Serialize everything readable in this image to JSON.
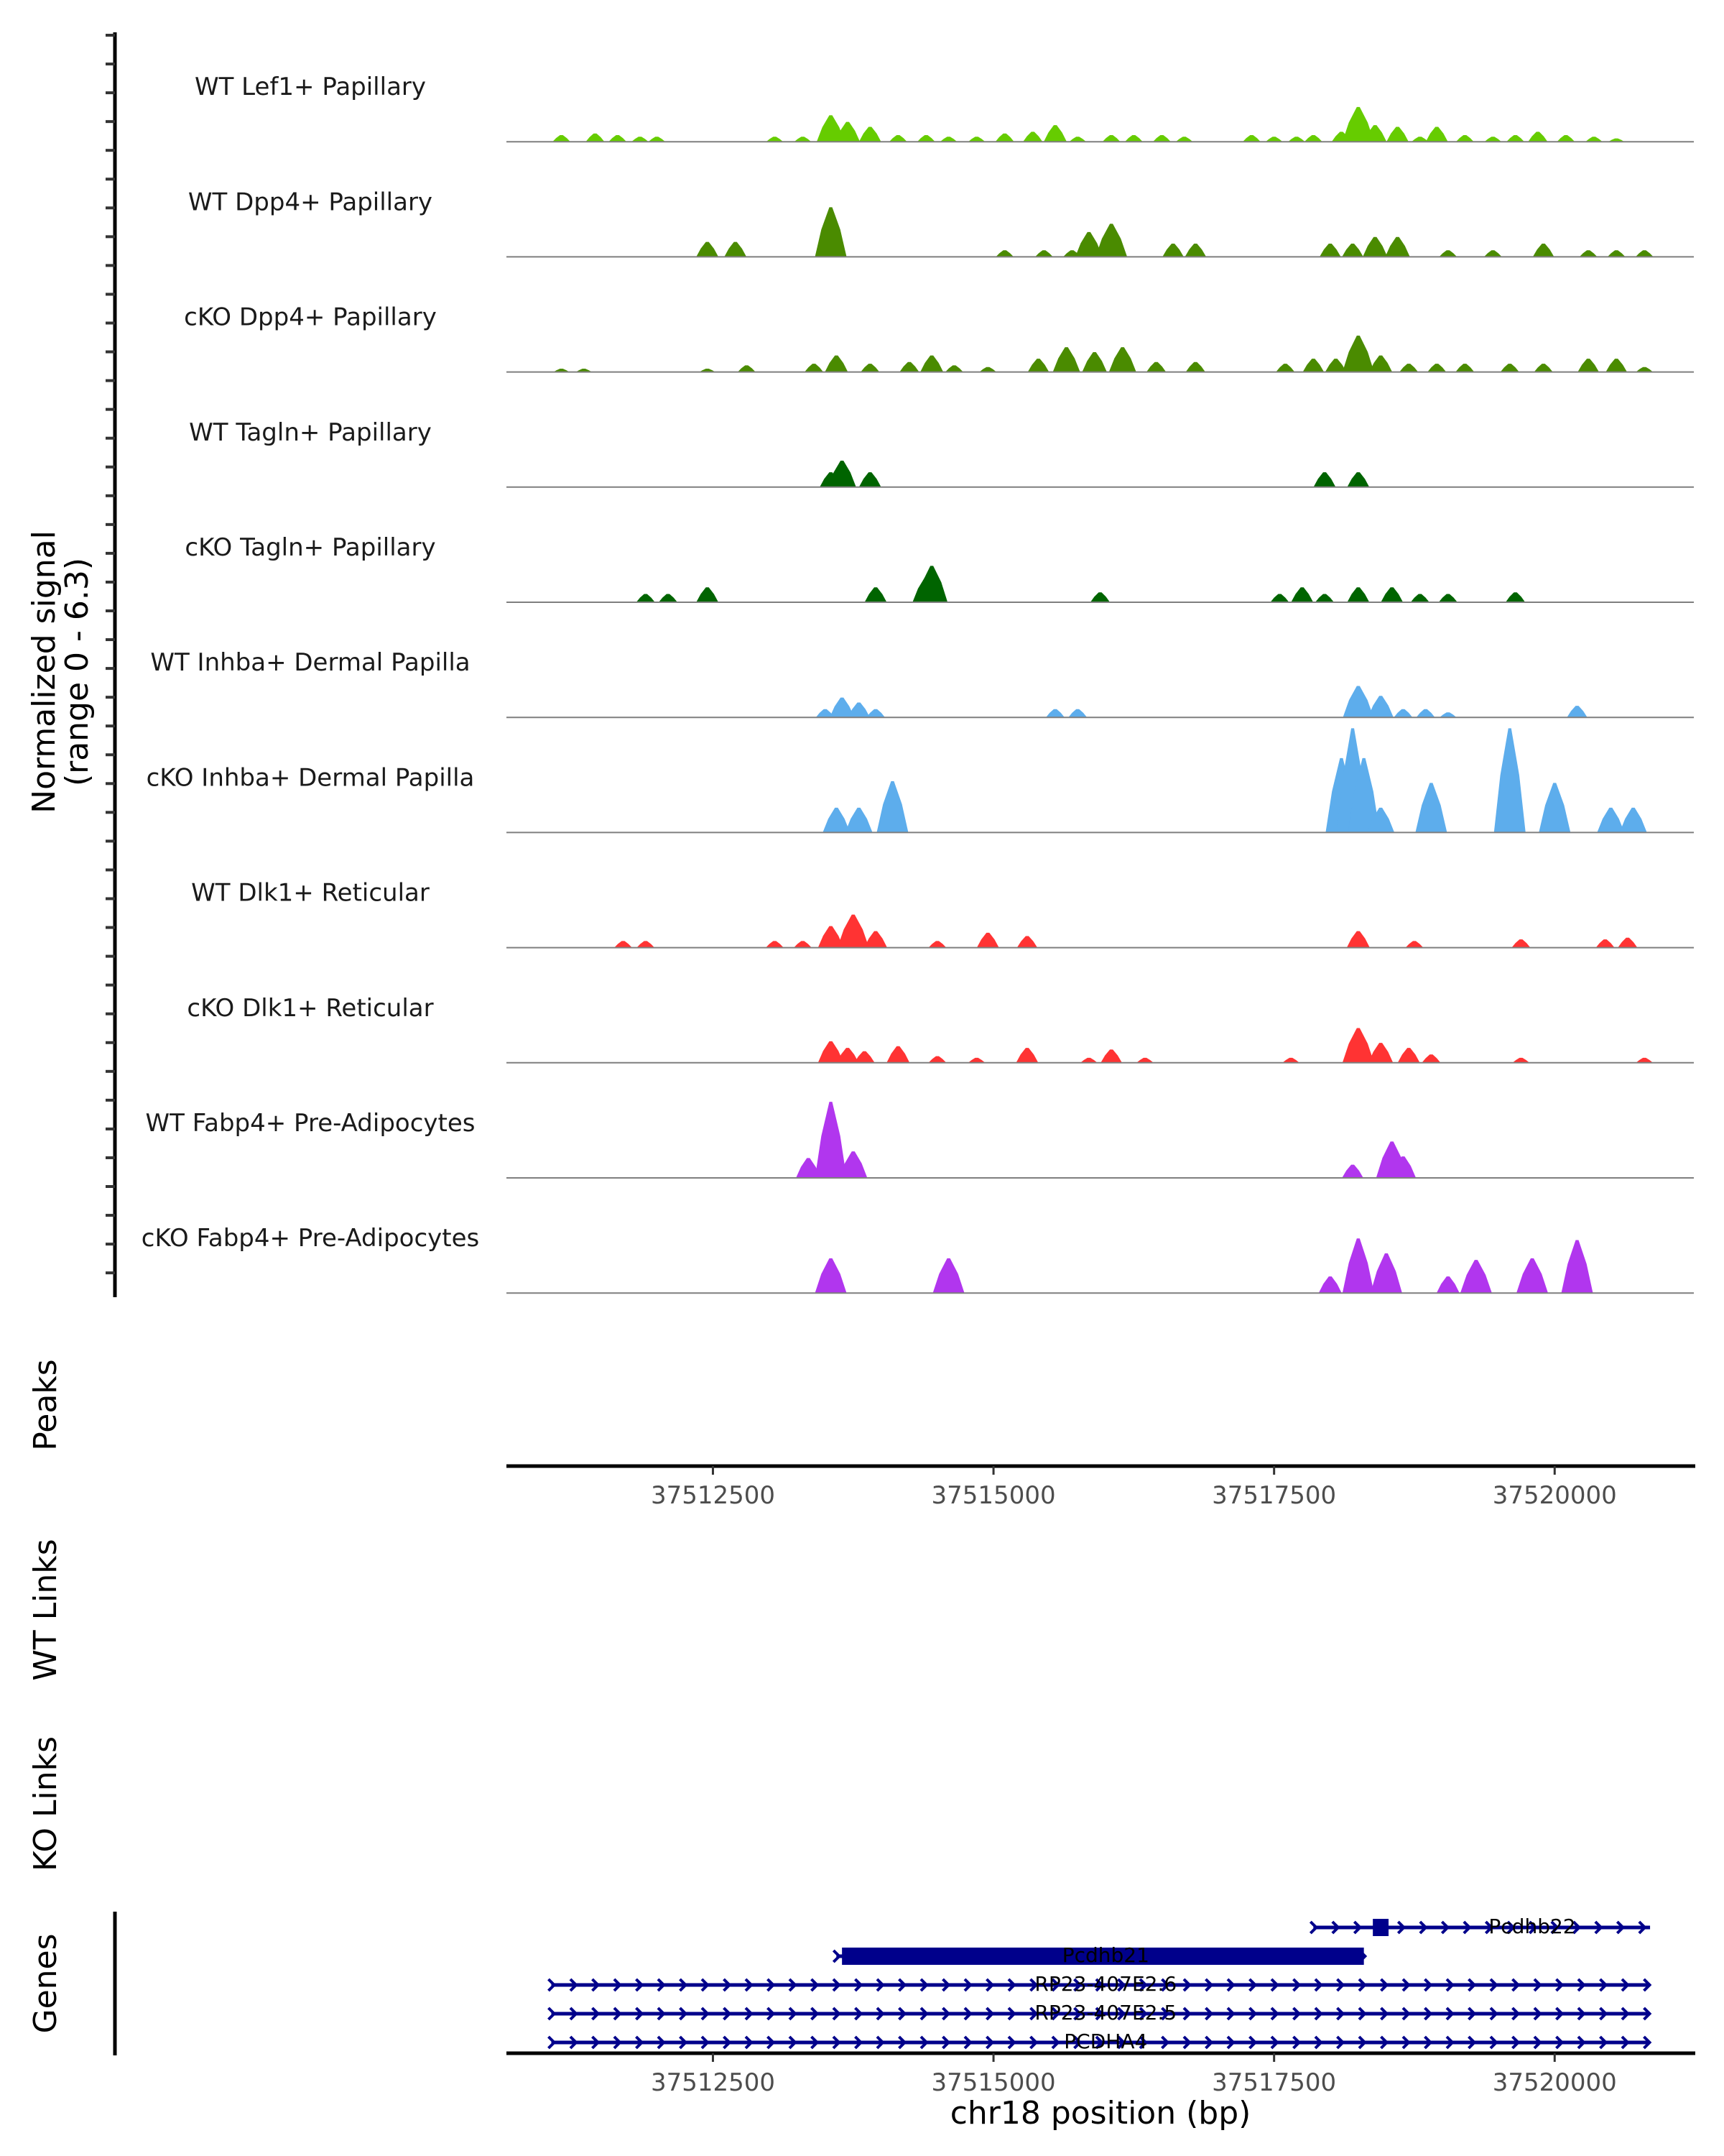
{
  "chart_data": {
    "type": "area",
    "title": "",
    "chromosome": "chr18",
    "xlabel": "chr18 position (bp)",
    "ylabel": "Normalized signal",
    "ylabel_sub": "(range 0 - 6.3)",
    "ylim": [
      0,
      6.3
    ],
    "xlim": [
      37510660,
      37521240
    ],
    "x_ticks": [
      37512500,
      37515000,
      37517500,
      37520000
    ],
    "x_tick_labels": [
      "37512500",
      "37515000",
      "37517500",
      "37520000"
    ],
    "grid": false,
    "tracks": [
      {
        "name": "WT Lef1+ Papillary",
        "color": "#66CC00",
        "peaks": [
          [
            37511150,
            0.4
          ],
          [
            37511450,
            0.5
          ],
          [
            37511650,
            0.4
          ],
          [
            37511850,
            0.3
          ],
          [
            37512000,
            0.3
          ],
          [
            37513050,
            0.3
          ],
          [
            37513300,
            0.3
          ],
          [
            37513550,
            1.6
          ],
          [
            37513700,
            1.2
          ],
          [
            37513900,
            0.9
          ],
          [
            37514150,
            0.4
          ],
          [
            37514400,
            0.4
          ],
          [
            37514600,
            0.3
          ],
          [
            37514850,
            0.3
          ],
          [
            37515100,
            0.5
          ],
          [
            37515350,
            0.6
          ],
          [
            37515550,
            1.0
          ],
          [
            37515750,
            0.3
          ],
          [
            37516050,
            0.4
          ],
          [
            37516250,
            0.4
          ],
          [
            37516500,
            0.4
          ],
          [
            37516700,
            0.3
          ],
          [
            37517300,
            0.4
          ],
          [
            37517500,
            0.3
          ],
          [
            37517700,
            0.3
          ],
          [
            37517850,
            0.4
          ],
          [
            37518100,
            0.6
          ],
          [
            37518250,
            2.1
          ],
          [
            37518400,
            1.0
          ],
          [
            37518600,
            0.9
          ],
          [
            37518800,
            0.3
          ],
          [
            37518950,
            0.9
          ],
          [
            37519200,
            0.4
          ],
          [
            37519450,
            0.3
          ],
          [
            37519650,
            0.4
          ],
          [
            37519850,
            0.6
          ],
          [
            37520100,
            0.4
          ],
          [
            37520350,
            0.3
          ],
          [
            37520550,
            0.2
          ]
        ]
      },
      {
        "name": "WT Dpp4+ Papillary",
        "color": "#4A8B00",
        "peaks": [
          [
            37512450,
            0.9
          ],
          [
            37512700,
            0.9
          ],
          [
            37513550,
            3.0
          ],
          [
            37515100,
            0.4
          ],
          [
            37515450,
            0.4
          ],
          [
            37515700,
            0.4
          ],
          [
            37515850,
            1.5
          ],
          [
            37516050,
            2.0
          ],
          [
            37516600,
            0.8
          ],
          [
            37516800,
            0.8
          ],
          [
            37518000,
            0.8
          ],
          [
            37518200,
            0.8
          ],
          [
            37518400,
            1.2
          ],
          [
            37518600,
            1.2
          ],
          [
            37519050,
            0.4
          ],
          [
            37519450,
            0.4
          ],
          [
            37519900,
            0.8
          ],
          [
            37520300,
            0.4
          ],
          [
            37520550,
            0.4
          ],
          [
            37520800,
            0.4
          ]
        ]
      },
      {
        "name": "cKO Dpp4+ Papillary",
        "color": "#4A8B00",
        "peaks": [
          [
            37511150,
            0.2
          ],
          [
            37511350,
            0.2
          ],
          [
            37512450,
            0.2
          ],
          [
            37512800,
            0.4
          ],
          [
            37513400,
            0.5
          ],
          [
            37513600,
            1.0
          ],
          [
            37513900,
            0.5
          ],
          [
            37514250,
            0.6
          ],
          [
            37514450,
            1.0
          ],
          [
            37514650,
            0.4
          ],
          [
            37514950,
            0.3
          ],
          [
            37515400,
            0.8
          ],
          [
            37515650,
            1.5
          ],
          [
            37515900,
            1.2
          ],
          [
            37516150,
            1.5
          ],
          [
            37516450,
            0.6
          ],
          [
            37516800,
            0.6
          ],
          [
            37517600,
            0.5
          ],
          [
            37517850,
            0.8
          ],
          [
            37518050,
            0.8
          ],
          [
            37518250,
            2.2
          ],
          [
            37518450,
            1.0
          ],
          [
            37518700,
            0.5
          ],
          [
            37518950,
            0.5
          ],
          [
            37519200,
            0.5
          ],
          [
            37519600,
            0.5
          ],
          [
            37519900,
            0.5
          ],
          [
            37520300,
            0.8
          ],
          [
            37520550,
            0.8
          ],
          [
            37520800,
            0.3
          ]
        ]
      },
      {
        "name": "WT Tagln+ Papillary",
        "color": "#006400",
        "peaks": [
          [
            37513550,
            0.9
          ],
          [
            37513650,
            1.6
          ],
          [
            37513900,
            0.9
          ],
          [
            37517950,
            0.9
          ],
          [
            37518250,
            0.9
          ]
        ]
      },
      {
        "name": "cKO Tagln+ Papillary",
        "color": "#006400",
        "peaks": [
          [
            37511900,
            0.5
          ],
          [
            37512100,
            0.5
          ],
          [
            37512450,
            0.9
          ],
          [
            37513950,
            0.9
          ],
          [
            37514400,
            1.5
          ],
          [
            37514450,
            2.2
          ],
          [
            37515950,
            0.6
          ],
          [
            37517550,
            0.5
          ],
          [
            37517750,
            0.9
          ],
          [
            37517950,
            0.5
          ],
          [
            37518250,
            0.9
          ],
          [
            37518550,
            0.9
          ],
          [
            37518800,
            0.5
          ],
          [
            37519050,
            0.5
          ],
          [
            37519650,
            0.6
          ]
        ]
      },
      {
        "name": "WT Inhba+ Dermal Papilla",
        "color": "#5DADEC",
        "peaks": [
          [
            37513500,
            0.5
          ],
          [
            37513650,
            1.2
          ],
          [
            37513800,
            0.9
          ],
          [
            37513950,
            0.5
          ],
          [
            37515550,
            0.5
          ],
          [
            37515750,
            0.5
          ],
          [
            37518250,
            1.9
          ],
          [
            37518450,
            1.3
          ],
          [
            37518650,
            0.5
          ],
          [
            37518850,
            0.5
          ],
          [
            37519050,
            0.3
          ],
          [
            37520200,
            0.7
          ]
        ]
      },
      {
        "name": "cKO Inhba+ Dermal Papilla",
        "color": "#5DADEC",
        "peaks": [
          [
            37513600,
            1.5
          ],
          [
            37513800,
            1.5
          ],
          [
            37514100,
            3.1
          ],
          [
            37518100,
            4.5
          ],
          [
            37518200,
            6.3
          ],
          [
            37518300,
            4.5
          ],
          [
            37518450,
            1.5
          ],
          [
            37518900,
            3.0
          ],
          [
            37519600,
            6.3
          ],
          [
            37520000,
            3.0
          ],
          [
            37520500,
            1.5
          ],
          [
            37520700,
            1.5
          ]
        ]
      },
      {
        "name": "WT Dlk1+ Reticular",
        "color": "#FF3333",
        "peaks": [
          [
            37511700,
            0.4
          ],
          [
            37511900,
            0.4
          ],
          [
            37513050,
            0.4
          ],
          [
            37513300,
            0.4
          ],
          [
            37513550,
            1.3
          ],
          [
            37513750,
            2.0
          ],
          [
            37513950,
            1.0
          ],
          [
            37514500,
            0.4
          ],
          [
            37514950,
            0.9
          ],
          [
            37515300,
            0.7
          ],
          [
            37518250,
            1.0
          ],
          [
            37518750,
            0.4
          ],
          [
            37519700,
            0.5
          ],
          [
            37520450,
            0.5
          ],
          [
            37520650,
            0.6
          ]
        ]
      },
      {
        "name": "cKO Dlk1+ Reticular",
        "color": "#FF3333",
        "peaks": [
          [
            37513550,
            1.3
          ],
          [
            37513700,
            0.9
          ],
          [
            37513850,
            0.7
          ],
          [
            37514150,
            1.0
          ],
          [
            37514500,
            0.4
          ],
          [
            37514850,
            0.3
          ],
          [
            37515300,
            0.9
          ],
          [
            37515850,
            0.3
          ],
          [
            37516050,
            0.8
          ],
          [
            37516350,
            0.3
          ],
          [
            37517650,
            0.3
          ],
          [
            37518250,
            2.1
          ],
          [
            37518450,
            1.2
          ],
          [
            37518700,
            0.9
          ],
          [
            37518900,
            0.5
          ],
          [
            37519700,
            0.3
          ],
          [
            37520800,
            0.3
          ]
        ]
      },
      {
        "name": "WT Fabp4+ Pre-Adipocytes",
        "color": "#B136EE",
        "peaks": [
          [
            37513350,
            1.2
          ],
          [
            37513550,
            4.6
          ],
          [
            37513750,
            1.6
          ],
          [
            37518200,
            0.8
          ],
          [
            37518550,
            2.2
          ],
          [
            37518650,
            1.3
          ]
        ]
      },
      {
        "name": "cKO Fabp4+ Pre-Adipocytes",
        "color": "#B136EE",
        "peaks": [
          [
            37513550,
            2.1
          ],
          [
            37514600,
            2.1
          ],
          [
            37518000,
            1.0
          ],
          [
            37518250,
            3.3
          ],
          [
            37518500,
            2.4
          ],
          [
            37519050,
            1.0
          ],
          [
            37519300,
            2.0
          ],
          [
            37519800,
            2.1
          ],
          [
            37520200,
            3.2
          ]
        ]
      }
    ],
    "annotation_tracks": [
      {
        "name": "Peaks",
        "items": []
      },
      {
        "name": "WT Links",
        "items": []
      },
      {
        "name": "KO Links",
        "items": []
      }
    ],
    "genes": [
      {
        "name": "Pcdhb22",
        "start": 37517850,
        "end": 37520850,
        "strand": "+",
        "exon": [
          37518380,
          37518520
        ],
        "row": 0
      },
      {
        "name": "Pcdhb21",
        "start": 37513600,
        "end": 37518300,
        "strand": "+",
        "exon": [
          37513650,
          37518300
        ],
        "row": 1
      },
      {
        "name": "RP23-407E2.6",
        "start": 37511060,
        "end": 37520850,
        "strand": "+",
        "row": 2
      },
      {
        "name": "RP23-407E2.5",
        "start": 37511060,
        "end": 37520850,
        "strand": "+",
        "row": 3
      },
      {
        "name": "PCDHA4",
        "start": 37511060,
        "end": 37520850,
        "strand": "+",
        "row": 4
      }
    ],
    "genes_track_label": "Genes",
    "gene_color": "#00008B"
  }
}
